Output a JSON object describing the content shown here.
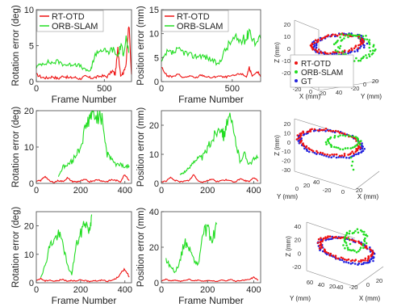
{
  "legend": {
    "rt": "RT-OTD",
    "orb": "ORB-SLAM",
    "gt": "GT"
  },
  "colors": {
    "rt": "#ee1111",
    "orb": "#22dd22",
    "gt": "#2222dd"
  },
  "chart_data": [
    {
      "type": "line",
      "panel": "row1-rotation",
      "xlabel": "Frame Number",
      "ylabel": "Rotation error (deg)",
      "xlim": [
        0,
        700
      ],
      "ylim": [
        0,
        10
      ],
      "xticks": [
        0,
        500
      ],
      "yticks": [
        0,
        5,
        10
      ],
      "legend": "top-left",
      "series": [
        {
          "name": "RT-OTD",
          "x": [
            0,
            40,
            80,
            120,
            160,
            200,
            240,
            280,
            320,
            360,
            400,
            440,
            480,
            520,
            560,
            580,
            600,
            620,
            640,
            660,
            680,
            700
          ],
          "y": [
            1.0,
            0.6,
            0.5,
            0.7,
            0.4,
            0.8,
            0.5,
            0.6,
            0.4,
            0.7,
            0.5,
            0.6,
            0.8,
            0.7,
            1.5,
            1.0,
            4.5,
            0.9,
            1.2,
            2.5,
            8.0,
            1.0
          ]
        },
        {
          "name": "ORB-SLAM",
          "x": [
            0,
            40,
            80,
            120,
            160,
            200,
            240,
            280,
            320,
            360,
            400,
            420,
            440,
            480,
            520,
            560,
            600,
            620,
            640,
            660,
            680
          ],
          "y": [
            2.0,
            2.5,
            2.7,
            2.6,
            2.8,
            2.4,
            2.3,
            2.5,
            2.2,
            1.6,
            1.5,
            3.0,
            4.0,
            4.5,
            4.0,
            4.5,
            3.5,
            5.0,
            4.0,
            6.0,
            4.0
          ]
        }
      ]
    },
    {
      "type": "line",
      "panel": "row1-position",
      "xlabel": "Frame Number",
      "ylabel": "Position error (mm)",
      "xlim": [
        0,
        700
      ],
      "ylim": [
        0,
        15
      ],
      "xticks": [
        0,
        500
      ],
      "yticks": [
        0,
        5,
        10,
        15
      ],
      "legend": "top-left",
      "series": [
        {
          "name": "RT-OTD",
          "x": [
            0,
            40,
            80,
            120,
            160,
            200,
            240,
            280,
            320,
            360,
            400,
            440,
            480,
            520,
            560,
            600,
            620,
            640,
            680,
            700
          ],
          "y": [
            3.0,
            1.2,
            1.0,
            1.5,
            0.8,
            1.2,
            0.7,
            1.4,
            1.0,
            0.8,
            1.2,
            0.9,
            1.1,
            1.3,
            1.7,
            1.0,
            3.0,
            1.0,
            2.0,
            1.0
          ]
        },
        {
          "name": "ORB-SLAM",
          "x": [
            0,
            40,
            80,
            120,
            160,
            200,
            240,
            280,
            320,
            360,
            400,
            440,
            480,
            520,
            560,
            600,
            620,
            660,
            700
          ],
          "y": [
            4.0,
            6.0,
            6.0,
            6.5,
            6.2,
            5.5,
            5.3,
            5.5,
            5.0,
            4.5,
            3.5,
            6.0,
            8.0,
            9.0,
            8.5,
            9.0,
            11.0,
            8.0,
            9.0
          ]
        }
      ]
    },
    {
      "type": "line",
      "panel": "row2-rotation",
      "xlabel": "",
      "ylabel": "Rotation error (deg)",
      "xlim": [
        0,
        430
      ],
      "ylim": [
        0,
        20
      ],
      "xticks": [
        0,
        200,
        400
      ],
      "yticks": [
        0,
        10,
        20
      ],
      "series": [
        {
          "name": "RT-OTD",
          "x": [
            0,
            20,
            40,
            60,
            80,
            100,
            120,
            140,
            160,
            180,
            200,
            220,
            240,
            260,
            280,
            300,
            320,
            340,
            360,
            380,
            400,
            420
          ],
          "y": [
            0.5,
            0.8,
            2.0,
            0.6,
            0.3,
            0.8,
            0.5,
            1.5,
            0.6,
            0.4,
            0.7,
            1.0,
            0.5,
            0.8,
            1.0,
            0.6,
            0.5,
            1.0,
            0.8,
            0.5,
            2.5,
            0.8
          ]
        },
        {
          "name": "ORB-SLAM",
          "x": [
            100,
            120,
            140,
            160,
            180,
            200,
            220,
            240,
            250,
            260,
            280,
            300,
            320,
            340,
            360,
            380,
            400,
            420
          ],
          "y": [
            2.0,
            4.5,
            5.0,
            6.0,
            8.0,
            10.0,
            15.0,
            18.0,
            19.0,
            19.2,
            18.5,
            17.0,
            8.0,
            7.0,
            5.0,
            5.5,
            4.5,
            4.8
          ]
        }
      ]
    },
    {
      "type": "line",
      "panel": "row2-position",
      "xlabel": "",
      "ylabel": "Position error (mm)",
      "xlim": [
        0,
        430
      ],
      "ylim": [
        0,
        25
      ],
      "xticks": [
        0,
        200,
        400
      ],
      "yticks": [
        0,
        10,
        20
      ],
      "series": [
        {
          "name": "RT-OTD",
          "x": [
            0,
            20,
            40,
            60,
            80,
            100,
            120,
            140,
            160,
            180,
            200,
            220,
            240,
            260,
            280,
            300,
            320,
            340,
            360,
            380,
            400,
            420
          ],
          "y": [
            0.5,
            0.8,
            2.0,
            1.0,
            0.5,
            0.8,
            1.0,
            3.0,
            0.8,
            0.5,
            1.0,
            1.5,
            0.6,
            1.0,
            1.2,
            0.8,
            0.5,
            1.5,
            1.0,
            0.6,
            2.0,
            0.8
          ]
        },
        {
          "name": "ORB-SLAM",
          "x": [
            80,
            100,
            120,
            140,
            160,
            180,
            200,
            220,
            240,
            260,
            270,
            280,
            300,
            320,
            340,
            360,
            380,
            400,
            420
          ],
          "y": [
            3.0,
            4.0,
            5.0,
            8.0,
            8.5,
            9.0,
            12.0,
            15.0,
            18.0,
            20.0,
            16.0,
            20.0,
            22.0,
            15.0,
            8.0,
            10.0,
            7.0,
            8.0,
            9.0
          ]
        }
      ]
    },
    {
      "type": "line",
      "panel": "row3-rotation",
      "xlabel": "Frame Number",
      "ylabel": "Rotation error (deg)",
      "xlim": [
        0,
        430
      ],
      "ylim": [
        0,
        25
      ],
      "xticks": [
        0,
        200,
        400
      ],
      "yticks": [
        0,
        10,
        20
      ],
      "series": [
        {
          "name": "RT-OTD",
          "x": [
            0,
            20,
            40,
            60,
            80,
            100,
            120,
            140,
            160,
            180,
            200,
            220,
            240,
            260,
            280,
            300,
            320,
            340,
            360,
            380,
            400,
            420
          ],
          "y": [
            0.8,
            1.5,
            0.6,
            1.0,
            0.5,
            0.8,
            1.2,
            0.6,
            0.9,
            0.5,
            1.0,
            0.7,
            0.5,
            0.8,
            0.6,
            1.0,
            0.5,
            0.8,
            1.5,
            3.0,
            5.0,
            2.0
          ]
        },
        {
          "name": "ORB-SLAM",
          "x": [
            20,
            40,
            60,
            80,
            100,
            120,
            140,
            160,
            180,
            200,
            220,
            240,
            250
          ],
          "y": [
            2.0,
            6.0,
            13.0,
            15.0,
            17.0,
            14.0,
            6.0,
            3.0,
            13.0,
            17.0,
            22.0,
            18.0,
            24.0
          ]
        }
      ]
    },
    {
      "type": "line",
      "panel": "row3-position",
      "xlabel": "Frame Number",
      "ylabel": "Position error (mm)",
      "xlim": [
        0,
        430
      ],
      "ylim": [
        0,
        40
      ],
      "xticks": [
        0,
        200,
        400
      ],
      "yticks": [
        0,
        20,
        40
      ],
      "series": [
        {
          "name": "RT-OTD",
          "x": [
            0,
            20,
            40,
            60,
            80,
            100,
            120,
            140,
            160,
            180,
            200,
            220,
            240,
            260,
            280,
            300,
            320,
            340,
            360,
            380,
            400,
            420
          ],
          "y": [
            1.0,
            2.0,
            1.0,
            1.5,
            0.8,
            1.2,
            2.0,
            1.0,
            1.5,
            0.8,
            1.2,
            1.0,
            0.8,
            1.5,
            1.0,
            2.0,
            0.8,
            1.2,
            1.5,
            2.0,
            3.0,
            1.5
          ]
        },
        {
          "name": "ORB-SLAM",
          "x": [
            20,
            40,
            60,
            80,
            100,
            120,
            140,
            160,
            180,
            200,
            220,
            240
          ],
          "y": [
            13.0,
            9.0,
            6.0,
            12.0,
            23.0,
            20.0,
            13.0,
            10.0,
            28.0,
            30.0,
            23.0,
            33.0
          ]
        }
      ]
    },
    {
      "type": "scatter",
      "panel": "row1-3d",
      "xlabel": "X (mm)",
      "ylabel": "Y (mm)",
      "zlabel": "Z (mm)",
      "zticks": [
        20,
        10,
        0,
        -10,
        -20
      ],
      "xticks": [
        -20,
        0,
        20,
        40
      ],
      "yticks": [
        -20,
        0,
        20
      ],
      "legend": "lower-left"
    },
    {
      "type": "scatter",
      "panel": "row2-3d",
      "xlabel": "X (mm)",
      "ylabel": "Y (mm)",
      "zlabel": "Z (mm)",
      "zticks": [
        20,
        10,
        0,
        -10,
        -20,
        -30
      ],
      "xticks": [
        -20,
        0,
        20
      ],
      "yticks": [
        0,
        20,
        40
      ]
    },
    {
      "type": "scatter",
      "panel": "row3-3d",
      "xlabel": "X (mm)",
      "ylabel": "Y (mm)",
      "zlabel": "Z (mm)",
      "zticks": [
        40,
        20,
        0,
        -20
      ],
      "xticks": [
        -40,
        -20,
        0,
        20
      ],
      "yticks": [
        60,
        40,
        20
      ]
    }
  ]
}
